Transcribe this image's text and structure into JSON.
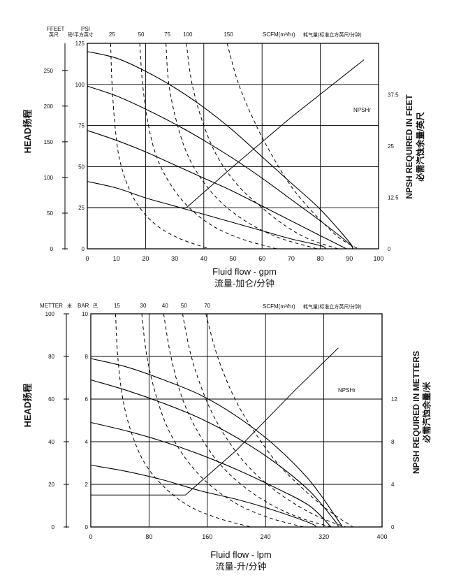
{
  "chart_data": [
    {
      "type": "line",
      "unit_labels": {
        "head_ft": "FFEET",
        "head_ft_cn": "英尺",
        "psi": "PSI",
        "psi_cn": "磅/平方英寸",
        "scfm": "SCFM(m³/hr)",
        "scfm_cn": "耗气量(标准立方英尺/分钟)",
        "npsh_curve": "NPSHr"
      },
      "ylabel": "HEAD扬程",
      "ylabel_right_1": "NPSH REQUIRED IN FEET",
      "ylabel_right_2": "必需汽蚀余量/英尺",
      "xlabel": "Fluid flow - gpm",
      "xlabel_cn": "流量-加仑/分钟",
      "xlim": [
        0,
        100
      ],
      "ylim_psi": [
        0,
        125
      ],
      "ylim_ft": [
        0,
        288
      ],
      "ylim_npsh": [
        0,
        50
      ],
      "x_ticks": [
        "0",
        "10",
        "20",
        "30",
        "40",
        "50",
        "60",
        "70",
        "80",
        "90",
        "100"
      ],
      "psi_ticks": [
        "0",
        "25",
        "50",
        "75",
        "100",
        "125"
      ],
      "ft_ticks": [
        "0",
        "50",
        "100",
        "150",
        "200",
        "250"
      ],
      "npsh_ticks": [
        "0",
        "12.5",
        "25",
        "37.5"
      ],
      "scfm_ticks": [
        "25",
        "50",
        "75",
        "100",
        "150"
      ],
      "grid": true,
      "head_curves": [
        {
          "x": [
            0,
            10,
            20,
            30,
            40,
            50,
            60,
            70,
            80,
            90,
            91
          ],
          "y": [
            120,
            116,
            108,
            98,
            86,
            72,
            56,
            40,
            24,
            4,
            0
          ]
        },
        {
          "x": [
            0,
            10,
            20,
            30,
            40,
            50,
            60,
            70,
            80,
            90,
            91
          ],
          "y": [
            99,
            93,
            85,
            76,
            66,
            55,
            43,
            30,
            17,
            3,
            0
          ]
        },
        {
          "x": [
            0,
            10,
            20,
            30,
            40,
            50,
            60,
            70,
            80,
            89
          ],
          "y": [
            72,
            66,
            59,
            51,
            43,
            35,
            26,
            17,
            8,
            0
          ]
        },
        {
          "x": [
            0,
            10,
            20,
            30,
            40,
            50,
            60,
            70,
            80,
            82
          ],
          "y": [
            41,
            37,
            31,
            26,
            21,
            16,
            11,
            6,
            2,
            0
          ]
        }
      ],
      "air_curves": [
        {
          "label": "25",
          "x": [
            8,
            8.5,
            9.5,
            11,
            14,
            18,
            24,
            32,
            42
          ],
          "y": [
            125,
            100,
            75,
            55,
            38,
            25,
            14,
            6,
            0
          ]
        },
        {
          "label": "50",
          "x": [
            18,
            19,
            21,
            24,
            29,
            35,
            43,
            53,
            65
          ],
          "y": [
            125,
            100,
            75,
            55,
            38,
            25,
            14,
            6,
            0
          ]
        },
        {
          "label": "75",
          "x": [
            27,
            28,
            31,
            35,
            41,
            48,
            57,
            67,
            79
          ],
          "y": [
            125,
            100,
            75,
            55,
            38,
            25,
            14,
            6,
            0
          ]
        },
        {
          "label": "100",
          "x": [
            34,
            36,
            40,
            45,
            52,
            60,
            68,
            76,
            86
          ],
          "y": [
            125,
            100,
            75,
            55,
            38,
            25,
            14,
            6,
            0
          ]
        },
        {
          "label": "150",
          "x": [
            48,
            52,
            58,
            64,
            70,
            76,
            82,
            87,
            93
          ],
          "y": [
            125,
            100,
            75,
            55,
            38,
            25,
            14,
            6,
            0
          ]
        }
      ],
      "npsh_curve": {
        "x": [
          0,
          34,
          50,
          70,
          95
        ],
        "y": [
          10,
          10,
          20,
          32,
          46
        ]
      }
    },
    {
      "type": "line",
      "unit_labels": {
        "head_m": "METTER",
        "head_m_cn": "米",
        "bar": "BAR",
        "bar_cn": "巴",
        "scfm": "SCFM(m³/hr)",
        "scfm_cn": "耗气量(标准立方英尺/分钟)",
        "npsh_curve": "NPSHr"
      },
      "ylabel": "HEAD扬程",
      "ylabel_right_1": "NPSH REQUIRED IN METTERS",
      "ylabel_right_2": "必需汽蚀余量/米",
      "xlabel": "Fluid flow - lpm",
      "xlabel_cn": "流量-升/分钟",
      "xlim": [
        0,
        400
      ],
      "ylim_bar": [
        0,
        10
      ],
      "ylim_m": [
        0,
        100
      ],
      "ylim_npsh": [
        0,
        20
      ],
      "x_ticks": [
        "0",
        "80",
        "160",
        "240",
        "320",
        "400"
      ],
      "bar_ticks": [
        "0",
        "2",
        "4",
        "6",
        "8",
        "10"
      ],
      "m_ticks": [
        "0",
        "20",
        "40",
        "60",
        "80",
        "100"
      ],
      "npsh_ticks": [
        "0",
        "4",
        "8",
        "12"
      ],
      "scfm_ticks": [
        "15",
        "30",
        "40",
        "50",
        "70"
      ],
      "grid": true,
      "head_curves": [
        {
          "x": [
            0,
            50,
            100,
            150,
            200,
            250,
            300,
            340,
            345
          ],
          "y": [
            7.9,
            7.5,
            6.9,
            6.2,
            5.2,
            3.9,
            2.2,
            0.3,
            0
          ]
        },
        {
          "x": [
            0,
            50,
            100,
            150,
            200,
            250,
            300,
            335,
            340
          ],
          "y": [
            6.9,
            6.4,
            5.8,
            5.1,
            4.2,
            3.1,
            1.7,
            0.3,
            0
          ]
        },
        {
          "x": [
            0,
            50,
            100,
            150,
            200,
            250,
            300,
            330
          ],
          "y": [
            4.9,
            4.5,
            4.0,
            3.4,
            2.7,
            1.9,
            1.0,
            0
          ]
        },
        {
          "x": [
            0,
            50,
            100,
            150,
            200,
            250,
            300,
            310
          ],
          "y": [
            2.9,
            2.6,
            2.2,
            1.7,
            1.3,
            0.8,
            0.2,
            0
          ]
        }
      ],
      "air_curves": [
        {
          "label": "15",
          "x": [
            34,
            37,
            44,
            56,
            74,
            100,
            134,
            176,
            220
          ],
          "y": [
            10,
            8,
            6,
            4.4,
            3.0,
            1.9,
            1.0,
            0.4,
            0
          ]
        },
        {
          "label": "30",
          "x": [
            70,
            77,
            91,
            109,
            135,
            166,
            205,
            248,
            292
          ],
          "y": [
            10,
            8,
            6,
            4.4,
            3.0,
            1.9,
            1.0,
            0.4,
            0
          ]
        },
        {
          "label": "40",
          "x": [
            100,
            110,
            126,
            148,
            176,
            210,
            250,
            290,
            330
          ],
          "y": [
            10,
            8,
            6,
            4.4,
            3.0,
            1.9,
            1.0,
            0.4,
            0
          ]
        },
        {
          "label": "50",
          "x": [
            126,
            138,
            158,
            182,
            212,
            246,
            284,
            318,
            350
          ],
          "y": [
            10,
            8,
            6,
            4.4,
            3.0,
            1.9,
            1.0,
            0.4,
            0
          ]
        },
        {
          "label": "70",
          "x": [
            158,
            174,
            198,
            226,
            256,
            288,
            318,
            342,
            360
          ],
          "y": [
            10,
            8,
            6,
            4.4,
            3.0,
            1.9,
            1.0,
            0.4,
            0
          ]
        }
      ],
      "npsh_curve": {
        "x": [
          0,
          130,
          200,
          280,
          340
        ],
        "y": [
          3.0,
          3.0,
          7.2,
          12.8,
          16.8
        ]
      }
    }
  ]
}
